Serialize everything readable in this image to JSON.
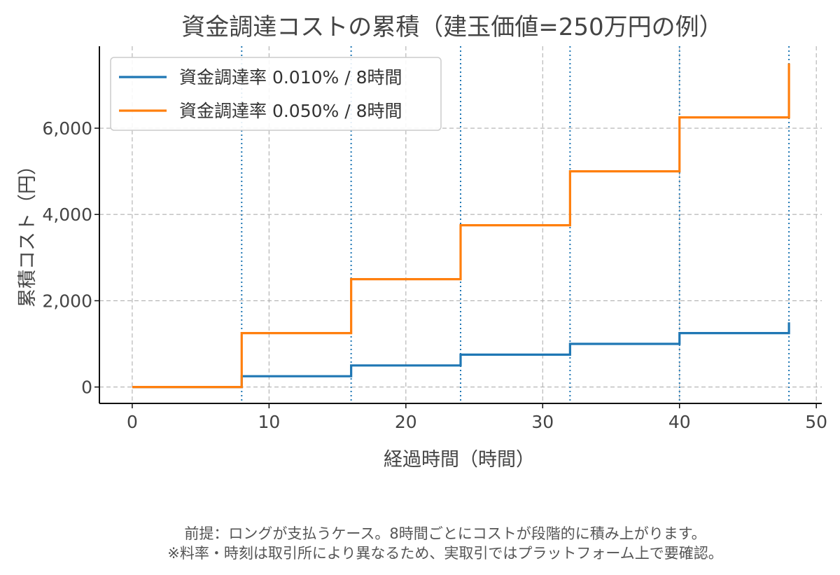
{
  "chart_data": {
    "type": "line",
    "step": "post",
    "title": "資金調達コストの累積（建玉価値=250万円の例）",
    "xlabel": "経過時間（時間）",
    "ylabel": "累積コスト（円）",
    "xlim": [
      -2.4,
      50.4
    ],
    "ylim": [
      -380,
      7900
    ],
    "xticks": [
      0,
      10,
      20,
      30,
      40,
      50
    ],
    "xtick_labels": [
      "0",
      "10",
      "20",
      "30",
      "40",
      "50"
    ],
    "yticks": [
      0,
      2000,
      4000,
      6000
    ],
    "ytick_labels": [
      "0",
      "2,000",
      "4,000",
      "6,000"
    ],
    "grid": true,
    "legend_position": "top-left",
    "vlines": [
      8,
      16,
      24,
      32,
      40,
      48
    ],
    "vline_color": "#1f77b4",
    "x": [
      0,
      8,
      16,
      24,
      32,
      40,
      48
    ],
    "series": [
      {
        "name": "資金調達率 0.010% / 8時間",
        "color": "#1f77b4",
        "values": [
          0,
          250,
          500,
          750,
          1000,
          1250,
          1500
        ]
      },
      {
        "name": "資金調達率 0.050% / 8時間",
        "color": "#ff7f0e",
        "values": [
          0,
          1250,
          2500,
          3750,
          5000,
          6250,
          7500
        ]
      }
    ]
  },
  "notes": [
    "前提：ロングが支払うケース。8時間ごとにコストが段階的に積み上がります。",
    "※料率・時刻は取引所により異なるため、実取引ではプラットフォーム上で要確認。"
  ]
}
